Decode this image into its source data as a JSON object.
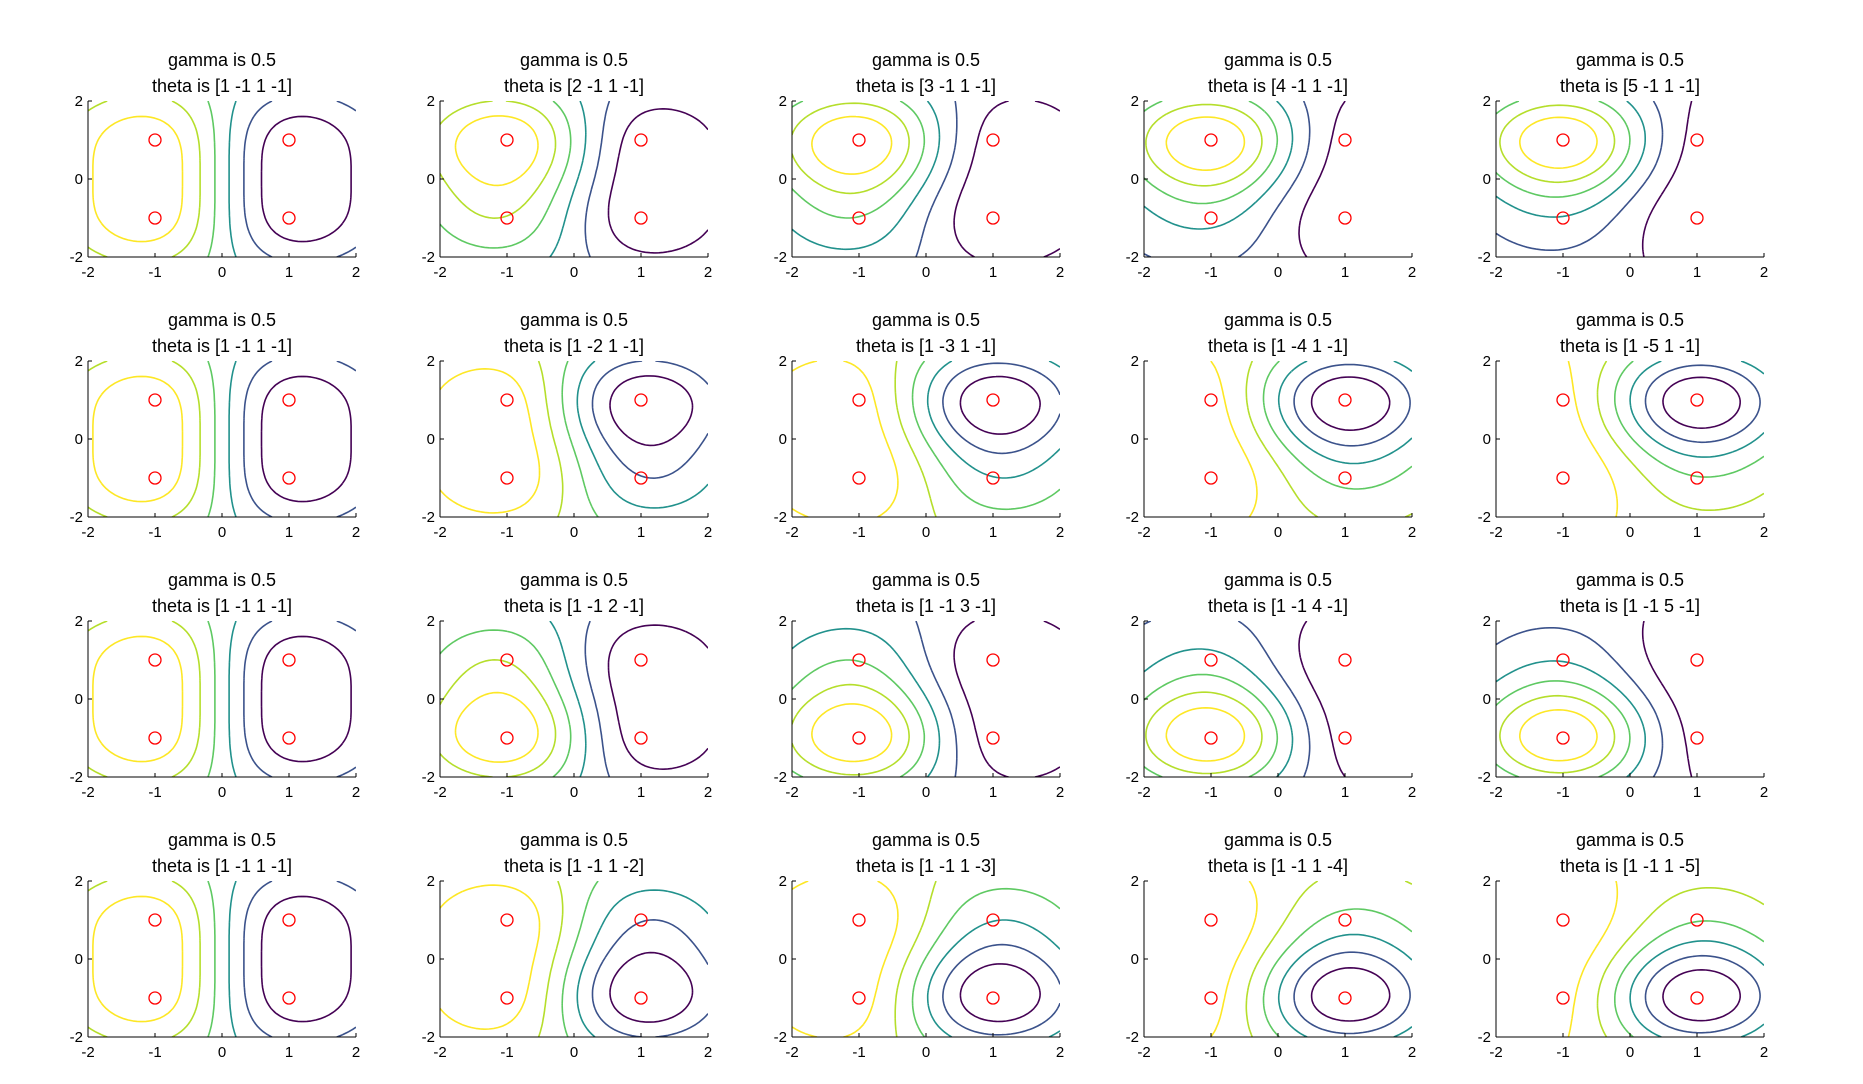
{
  "figure": {
    "colors": {
      "axis": "#000000",
      "points": "#ff0000",
      "contour_levels": [
        "#440154",
        "#3b528b",
        "#21918c",
        "#5ec962",
        "#b5de2b",
        "#fde725"
      ]
    }
  },
  "chart_data": [
    {
      "type": "contour",
      "title": [
        "gamma is 0.5",
        "theta is [1 -1 1 -1]"
      ],
      "gamma": 0.5,
      "theta": [
        1,
        -1,
        1,
        -1
      ],
      "xlim": [
        -2,
        2
      ],
      "ylim": [
        -2,
        2
      ],
      "xticks": [
        "-2",
        "-1",
        "0",
        "1",
        "2"
      ],
      "yticks": [
        "-2",
        "0",
        "2"
      ],
      "points": [
        [
          -1,
          1
        ],
        [
          1,
          1
        ],
        [
          -1,
          -1
        ],
        [
          1,
          -1
        ]
      ]
    },
    {
      "type": "contour",
      "title": [
        "gamma is 0.5",
        "theta is [2 -1 1 -1]"
      ],
      "gamma": 0.5,
      "theta": [
        2,
        -1,
        1,
        -1
      ],
      "xlim": [
        -2,
        2
      ],
      "ylim": [
        -2,
        2
      ],
      "xticks": [
        "-2",
        "-1",
        "0",
        "1",
        "2"
      ],
      "yticks": [
        "-2",
        "0",
        "2"
      ],
      "points": [
        [
          -1,
          1
        ],
        [
          1,
          1
        ],
        [
          -1,
          -1
        ],
        [
          1,
          -1
        ]
      ]
    },
    {
      "type": "contour",
      "title": [
        "gamma is 0.5",
        "theta is [3 -1 1 -1]"
      ],
      "gamma": 0.5,
      "theta": [
        3,
        -1,
        1,
        -1
      ],
      "xlim": [
        -2,
        2
      ],
      "ylim": [
        -2,
        2
      ],
      "xticks": [
        "-2",
        "-1",
        "0",
        "1",
        "2"
      ],
      "yticks": [
        "-2",
        "0",
        "2"
      ],
      "points": [
        [
          -1,
          1
        ],
        [
          1,
          1
        ],
        [
          -1,
          -1
        ],
        [
          1,
          -1
        ]
      ]
    },
    {
      "type": "contour",
      "title": [
        "gamma is 0.5",
        "theta is [4 -1 1 -1]"
      ],
      "gamma": 0.5,
      "theta": [
        4,
        -1,
        1,
        -1
      ],
      "xlim": [
        -2,
        2
      ],
      "ylim": [
        -2,
        2
      ],
      "xticks": [
        "-2",
        "-1",
        "0",
        "1",
        "2"
      ],
      "yticks": [
        "-2",
        "0",
        "2"
      ],
      "points": [
        [
          -1,
          1
        ],
        [
          1,
          1
        ],
        [
          -1,
          -1
        ],
        [
          1,
          -1
        ]
      ]
    },
    {
      "type": "contour",
      "title": [
        "gamma is 0.5",
        "theta is [5 -1 1 -1]"
      ],
      "gamma": 0.5,
      "theta": [
        5,
        -1,
        1,
        -1
      ],
      "xlim": [
        -2,
        2
      ],
      "ylim": [
        -2,
        2
      ],
      "xticks": [
        "-2",
        "-1",
        "0",
        "1",
        "2"
      ],
      "yticks": [
        "-2",
        "0",
        "2"
      ],
      "points": [
        [
          -1,
          1
        ],
        [
          1,
          1
        ],
        [
          -1,
          -1
        ],
        [
          1,
          -1
        ]
      ]
    },
    {
      "type": "contour",
      "title": [
        "gamma is 0.5",
        "theta is [1 -1 1 -1]"
      ],
      "gamma": 0.5,
      "theta": [
        1,
        -1,
        1,
        -1
      ],
      "xlim": [
        -2,
        2
      ],
      "ylim": [
        -2,
        2
      ],
      "xticks": [
        "-2",
        "-1",
        "0",
        "1",
        "2"
      ],
      "yticks": [
        "-2",
        "0",
        "2"
      ],
      "points": [
        [
          -1,
          1
        ],
        [
          1,
          1
        ],
        [
          -1,
          -1
        ],
        [
          1,
          -1
        ]
      ]
    },
    {
      "type": "contour",
      "title": [
        "gamma is 0.5",
        "theta is [1 -2 1 -1]"
      ],
      "gamma": 0.5,
      "theta": [
        1,
        -2,
        1,
        -1
      ],
      "xlim": [
        -2,
        2
      ],
      "ylim": [
        -2,
        2
      ],
      "xticks": [
        "-2",
        "-1",
        "0",
        "1",
        "2"
      ],
      "yticks": [
        "-2",
        "0",
        "2"
      ],
      "points": [
        [
          -1,
          1
        ],
        [
          1,
          1
        ],
        [
          -1,
          -1
        ],
        [
          1,
          -1
        ]
      ]
    },
    {
      "type": "contour",
      "title": [
        "gamma is 0.5",
        "theta is [1 -3 1 -1]"
      ],
      "gamma": 0.5,
      "theta": [
        1,
        -3,
        1,
        -1
      ],
      "xlim": [
        -2,
        2
      ],
      "ylim": [
        -2,
        2
      ],
      "xticks": [
        "-2",
        "-1",
        "0",
        "1",
        "2"
      ],
      "yticks": [
        "-2",
        "0",
        "2"
      ],
      "points": [
        [
          -1,
          1
        ],
        [
          1,
          1
        ],
        [
          -1,
          -1
        ],
        [
          1,
          -1
        ]
      ]
    },
    {
      "type": "contour",
      "title": [
        "gamma is 0.5",
        "theta is [1 -4 1 -1]"
      ],
      "gamma": 0.5,
      "theta": [
        1,
        -4,
        1,
        -1
      ],
      "xlim": [
        -2,
        2
      ],
      "ylim": [
        -2,
        2
      ],
      "xticks": [
        "-2",
        "-1",
        "0",
        "1",
        "2"
      ],
      "yticks": [
        "-2",
        "0",
        "2"
      ],
      "points": [
        [
          -1,
          1
        ],
        [
          1,
          1
        ],
        [
          -1,
          -1
        ],
        [
          1,
          -1
        ]
      ]
    },
    {
      "type": "contour",
      "title": [
        "gamma is 0.5",
        "theta is [1 -5 1 -1]"
      ],
      "gamma": 0.5,
      "theta": [
        1,
        -5,
        1,
        -1
      ],
      "xlim": [
        -2,
        2
      ],
      "ylim": [
        -2,
        2
      ],
      "xticks": [
        "-2",
        "-1",
        "0",
        "1",
        "2"
      ],
      "yticks": [
        "-2",
        "0",
        "2"
      ],
      "points": [
        [
          -1,
          1
        ],
        [
          1,
          1
        ],
        [
          -1,
          -1
        ],
        [
          1,
          -1
        ]
      ]
    },
    {
      "type": "contour",
      "title": [
        "gamma is 0.5",
        "theta is [1 -1 1 -1]"
      ],
      "gamma": 0.5,
      "theta": [
        1,
        -1,
        1,
        -1
      ],
      "xlim": [
        -2,
        2
      ],
      "ylim": [
        -2,
        2
      ],
      "xticks": [
        "-2",
        "-1",
        "0",
        "1",
        "2"
      ],
      "yticks": [
        "-2",
        "0",
        "2"
      ],
      "points": [
        [
          -1,
          1
        ],
        [
          1,
          1
        ],
        [
          -1,
          -1
        ],
        [
          1,
          -1
        ]
      ]
    },
    {
      "type": "contour",
      "title": [
        "gamma is 0.5",
        "theta is [1 -1 2 -1]"
      ],
      "gamma": 0.5,
      "theta": [
        1,
        -1,
        2,
        -1
      ],
      "xlim": [
        -2,
        2
      ],
      "ylim": [
        -2,
        2
      ],
      "xticks": [
        "-2",
        "-1",
        "0",
        "1",
        "2"
      ],
      "yticks": [
        "-2",
        "0",
        "2"
      ],
      "points": [
        [
          -1,
          1
        ],
        [
          1,
          1
        ],
        [
          -1,
          -1
        ],
        [
          1,
          -1
        ]
      ]
    },
    {
      "type": "contour",
      "title": [
        "gamma is 0.5",
        "theta is [1 -1 3 -1]"
      ],
      "gamma": 0.5,
      "theta": [
        1,
        -1,
        3,
        -1
      ],
      "xlim": [
        -2,
        2
      ],
      "ylim": [
        -2,
        2
      ],
      "xticks": [
        "-2",
        "-1",
        "0",
        "1",
        "2"
      ],
      "yticks": [
        "-2",
        "0",
        "2"
      ],
      "points": [
        [
          -1,
          1
        ],
        [
          1,
          1
        ],
        [
          -1,
          -1
        ],
        [
          1,
          -1
        ]
      ]
    },
    {
      "type": "contour",
      "title": [
        "gamma is 0.5",
        "theta is [1 -1 4 -1]"
      ],
      "gamma": 0.5,
      "theta": [
        1,
        -1,
        4,
        -1
      ],
      "xlim": [
        -2,
        2
      ],
      "ylim": [
        -2,
        2
      ],
      "xticks": [
        "-2",
        "-1",
        "0",
        "1",
        "2"
      ],
      "yticks": [
        "-2",
        "0",
        "2"
      ],
      "points": [
        [
          -1,
          1
        ],
        [
          1,
          1
        ],
        [
          -1,
          -1
        ],
        [
          1,
          -1
        ]
      ]
    },
    {
      "type": "contour",
      "title": [
        "gamma is 0.5",
        "theta is [1 -1 5 -1]"
      ],
      "gamma": 0.5,
      "theta": [
        1,
        -1,
        5,
        -1
      ],
      "xlim": [
        -2,
        2
      ],
      "ylim": [
        -2,
        2
      ],
      "xticks": [
        "-2",
        "-1",
        "0",
        "1",
        "2"
      ],
      "yticks": [
        "-2",
        "0",
        "2"
      ],
      "points": [
        [
          -1,
          1
        ],
        [
          1,
          1
        ],
        [
          -1,
          -1
        ],
        [
          1,
          -1
        ]
      ]
    },
    {
      "type": "contour",
      "title": [
        "gamma is 0.5",
        "theta is [1 -1 1 -1]"
      ],
      "gamma": 0.5,
      "theta": [
        1,
        -1,
        1,
        -1
      ],
      "xlim": [
        -2,
        2
      ],
      "ylim": [
        -2,
        2
      ],
      "xticks": [
        "-2",
        "-1",
        "0",
        "1",
        "2"
      ],
      "yticks": [
        "-2",
        "0",
        "2"
      ],
      "points": [
        [
          -1,
          1
        ],
        [
          1,
          1
        ],
        [
          -1,
          -1
        ],
        [
          1,
          -1
        ]
      ]
    },
    {
      "type": "contour",
      "title": [
        "gamma is 0.5",
        "theta is [1 -1 1 -2]"
      ],
      "gamma": 0.5,
      "theta": [
        1,
        -1,
        1,
        -2
      ],
      "xlim": [
        -2,
        2
      ],
      "ylim": [
        -2,
        2
      ],
      "xticks": [
        "-2",
        "-1",
        "0",
        "1",
        "2"
      ],
      "yticks": [
        "-2",
        "0",
        "2"
      ],
      "points": [
        [
          -1,
          1
        ],
        [
          1,
          1
        ],
        [
          -1,
          -1
        ],
        [
          1,
          -1
        ]
      ]
    },
    {
      "type": "contour",
      "title": [
        "gamma is 0.5",
        "theta is [1 -1 1 -3]"
      ],
      "gamma": 0.5,
      "theta": [
        1,
        -1,
        1,
        -3
      ],
      "xlim": [
        -2,
        2
      ],
      "ylim": [
        -2,
        2
      ],
      "xticks": [
        "-2",
        "-1",
        "0",
        "1",
        "2"
      ],
      "yticks": [
        "-2",
        "0",
        "2"
      ],
      "points": [
        [
          -1,
          1
        ],
        [
          1,
          1
        ],
        [
          -1,
          -1
        ],
        [
          1,
          -1
        ]
      ]
    },
    {
      "type": "contour",
      "title": [
        "gamma is 0.5",
        "theta is [1 -1 1 -4]"
      ],
      "gamma": 0.5,
      "theta": [
        1,
        -1,
        1,
        -4
      ],
      "xlim": [
        -2,
        2
      ],
      "ylim": [
        -2,
        2
      ],
      "xticks": [
        "-2",
        "-1",
        "0",
        "1",
        "2"
      ],
      "yticks": [
        "-2",
        "0",
        "2"
      ],
      "points": [
        [
          -1,
          1
        ],
        [
          1,
          1
        ],
        [
          -1,
          -1
        ],
        [
          1,
          -1
        ]
      ]
    },
    {
      "type": "contour",
      "title": [
        "gamma is 0.5",
        "theta is [1 -1 1 -5]"
      ],
      "gamma": 0.5,
      "theta": [
        1,
        -1,
        1,
        -5
      ],
      "xlim": [
        -2,
        2
      ],
      "ylim": [
        -2,
        2
      ],
      "xticks": [
        "-2",
        "-1",
        "0",
        "1",
        "2"
      ],
      "yticks": [
        "-2",
        "0",
        "2"
      ],
      "points": [
        [
          -1,
          1
        ],
        [
          1,
          1
        ],
        [
          -1,
          -1
        ],
        [
          1,
          -1
        ]
      ]
    }
  ]
}
